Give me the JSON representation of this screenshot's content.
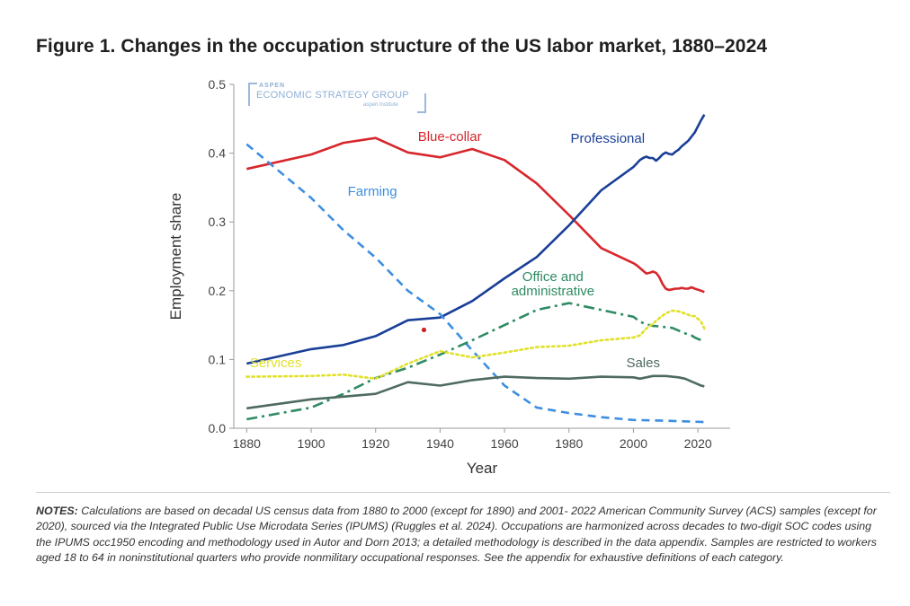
{
  "figure": {
    "title": "Figure 1. Changes in the occupation structure of the US labor market, 1880–2024"
  },
  "logo": {
    "line1": "ASPEN",
    "line2": "ECONOMIC STRATEGY GROUP",
    "line3": "aspen institute"
  },
  "notes": {
    "label": "NOTES:",
    "text": " Calculations are based on decadal US census data from 1880 to 2000 (except for 1890) and 2001- 2022 American Community Survey (ACS) samples (except for 2020), sourced via the Integrated Public Use Microdata Series (IPUMS) (Ruggles et al. 2024). Occupations are harmonized across decades to two-digit SOC codes using the IPUMS occ1950 encoding and methodology used in Autor and Dorn 2013; a detailed methodology is described in the data appendix. Samples are restricted to workers aged 18 to 64 in noninstitutional quarters who provide nonmilitary occupational responses. See the appendix for exhaustive definitions of each category."
  },
  "chart_data": {
    "type": "line",
    "title": "Figure 1. Changes in the occupation structure of the US labor market, 1880–2024",
    "xlabel": "Year",
    "ylabel": "Employment share",
    "xlim": [
      1876,
      2030
    ],
    "ylim": [
      0,
      0.5
    ],
    "xticks": [
      1880,
      1900,
      1920,
      1940,
      1960,
      1980,
      2000,
      2020
    ],
    "yticks": [
      0.0,
      0.1,
      0.2,
      0.3,
      0.4,
      0.5
    ],
    "ytick_labels": [
      "0.0",
      "0.1",
      "0.2",
      "0.3",
      "0.4",
      "0.5"
    ],
    "grid": false,
    "legend": "inline labels",
    "series": [
      {
        "name": "Blue-collar",
        "color": "#d7262c",
        "style": "solid",
        "x": [
          1880,
          1900,
          1910,
          1920,
          1930,
          1940,
          1950,
          1960,
          1970,
          1980,
          1990,
          2000,
          2001,
          2002,
          2003,
          2004,
          2005,
          2006,
          2007,
          2008,
          2009,
          2010,
          2011,
          2012,
          2013,
          2014,
          2015,
          2016,
          2017,
          2018,
          2019,
          2021,
          2022
        ],
        "y": [
          0.377,
          0.398,
          0.415,
          0.422,
          0.401,
          0.394,
          0.406,
          0.39,
          0.356,
          0.31,
          0.262,
          0.24,
          0.237,
          0.233,
          0.229,
          0.225,
          0.226,
          0.228,
          0.226,
          0.22,
          0.21,
          0.203,
          0.201,
          0.202,
          0.203,
          0.203,
          0.204,
          0.203,
          0.203,
          0.205,
          0.203,
          0.2,
          0.198
        ]
      },
      {
        "name": "Professional",
        "color": "#1a3f98",
        "style": "solid",
        "x": [
          1880,
          1900,
          1910,
          1920,
          1930,
          1940,
          1950,
          1960,
          1970,
          1980,
          1990,
          2000,
          2001,
          2002,
          2003,
          2004,
          2005,
          2006,
          2007,
          2008,
          2009,
          2010,
          2011,
          2012,
          2013,
          2014,
          2015,
          2016,
          2017,
          2018,
          2019,
          2021,
          2022
        ],
        "y": [
          0.094,
          0.115,
          0.121,
          0.134,
          0.157,
          0.161,
          0.185,
          0.218,
          0.249,
          0.295,
          0.346,
          0.38,
          0.385,
          0.39,
          0.393,
          0.395,
          0.393,
          0.393,
          0.389,
          0.393,
          0.398,
          0.401,
          0.399,
          0.398,
          0.402,
          0.405,
          0.41,
          0.414,
          0.418,
          0.424,
          0.43,
          0.448,
          0.456
        ]
      },
      {
        "name": "Farming",
        "color": "#3d8ee0",
        "style": "dashed",
        "x": [
          1880,
          1900,
          1910,
          1920,
          1930,
          1940,
          1950,
          1960,
          1970,
          1980,
          1990,
          2000,
          2010,
          2022
        ],
        "y": [
          0.413,
          0.335,
          0.288,
          0.248,
          0.2,
          0.166,
          0.113,
          0.062,
          0.03,
          0.022,
          0.016,
          0.012,
          0.011,
          0.009
        ]
      },
      {
        "name": "Office and administrative",
        "color": "#2e8b63",
        "style": "dashdot",
        "x": [
          1880,
          1900,
          1910,
          1920,
          1930,
          1940,
          1950,
          1960,
          1970,
          1980,
          1990,
          2000,
          2002,
          2004,
          2006,
          2008,
          2010,
          2012,
          2014,
          2016,
          2018,
          2019,
          2021,
          2022
        ],
        "y": [
          0.013,
          0.03,
          0.05,
          0.073,
          0.088,
          0.107,
          0.128,
          0.15,
          0.172,
          0.182,
          0.172,
          0.162,
          0.155,
          0.151,
          0.149,
          0.148,
          0.147,
          0.146,
          0.142,
          0.138,
          0.135,
          0.132,
          0.128,
          0.128
        ]
      },
      {
        "name": "Services",
        "color": "#e1e12a",
        "style": "dotted",
        "x": [
          1880,
          1900,
          1910,
          1920,
          1930,
          1940,
          1950,
          1960,
          1970,
          1980,
          1990,
          2000,
          2002,
          2004,
          2006,
          2008,
          2010,
          2012,
          2014,
          2016,
          2018,
          2019,
          2021,
          2022
        ],
        "y": [
          0.075,
          0.076,
          0.078,
          0.072,
          0.094,
          0.112,
          0.103,
          0.11,
          0.118,
          0.12,
          0.128,
          0.132,
          0.135,
          0.145,
          0.152,
          0.16,
          0.167,
          0.171,
          0.17,
          0.167,
          0.163,
          0.163,
          0.155,
          0.145
        ]
      },
      {
        "name": "Sales",
        "color": "#4f6b60",
        "style": "solid",
        "x": [
          1880,
          1900,
          1910,
          1920,
          1930,
          1940,
          1950,
          1960,
          1970,
          1980,
          1990,
          2000,
          2002,
          2004,
          2006,
          2008,
          2010,
          2012,
          2014,
          2016,
          2018,
          2019,
          2021,
          2022
        ],
        "y": [
          0.029,
          0.042,
          0.046,
          0.05,
          0.067,
          0.062,
          0.07,
          0.075,
          0.073,
          0.072,
          0.075,
          0.074,
          0.072,
          0.074,
          0.076,
          0.076,
          0.076,
          0.075,
          0.074,
          0.072,
          0.068,
          0.066,
          0.062,
          0.061
        ]
      }
    ],
    "labels": [
      {
        "text": "Blue-collar",
        "series": "Blue-collar",
        "x": 1943,
        "y": 0.418,
        "color": "#d7262c"
      },
      {
        "text": "Professional",
        "series": "Professional",
        "x": 1992,
        "y": 0.415,
        "color": "#1a3f98"
      },
      {
        "text": "Farming",
        "series": "Farming",
        "x": 1919,
        "y": 0.338,
        "color": "#3d8ee0"
      },
      {
        "text": "Office and",
        "series": "Office and administrative",
        "x": 1975,
        "y": 0.214,
        "color": "#2e8b63"
      },
      {
        "text": "administrative",
        "series": "Office and administrative",
        "x": 1975,
        "y": 0.193,
        "color": "#2e8b63"
      },
      {
        "text": "Services",
        "series": "Services",
        "x": 1889,
        "y": 0.089,
        "color": "#e1e12a"
      },
      {
        "text": "Sales",
        "series": "Sales",
        "x": 2003,
        "y": 0.089,
        "color": "#4f6b60"
      }
    ],
    "markers": [
      {
        "x": 1935,
        "y": 0.143,
        "color": "#cc1f1f"
      }
    ]
  }
}
